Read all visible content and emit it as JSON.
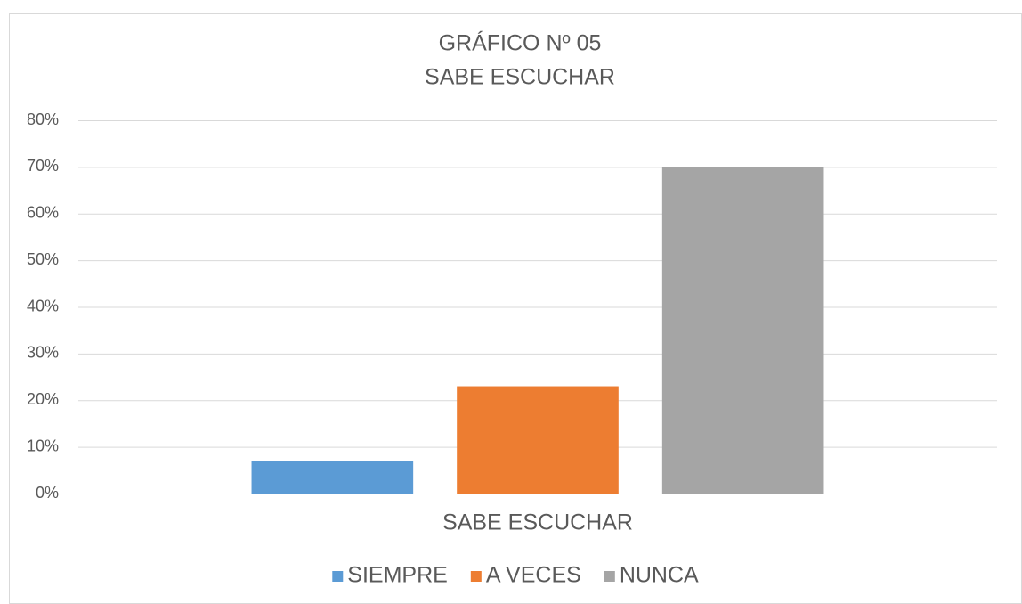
{
  "chart_data": {
    "type": "bar",
    "title": "GRÁFICO Nº 05",
    "subtitle": "SABE ESCUCHAR",
    "categories": [
      "SABE ESCUCHAR"
    ],
    "series": [
      {
        "name": "SIEMPRE",
        "color": "#5b9bd5",
        "values": [
          7
        ]
      },
      {
        "name": "A VECES",
        "color": "#ed7d31",
        "values": [
          23
        ]
      },
      {
        "name": "NUNCA",
        "color": "#a5a5a5",
        "values": [
          70
        ]
      }
    ],
    "ylim": [
      0,
      80
    ],
    "yticks": [
      {
        "value": 0,
        "label": "0%"
      },
      {
        "value": 10,
        "label": "10%"
      },
      {
        "value": 20,
        "label": "20%"
      },
      {
        "value": 30,
        "label": "30%"
      },
      {
        "value": 40,
        "label": "40%"
      },
      {
        "value": 50,
        "label": "50%"
      },
      {
        "value": 60,
        "label": "60%"
      },
      {
        "value": 70,
        "label": "70%"
      },
      {
        "value": 80,
        "label": "80%"
      }
    ],
    "grid": true,
    "legend": "bottom"
  }
}
